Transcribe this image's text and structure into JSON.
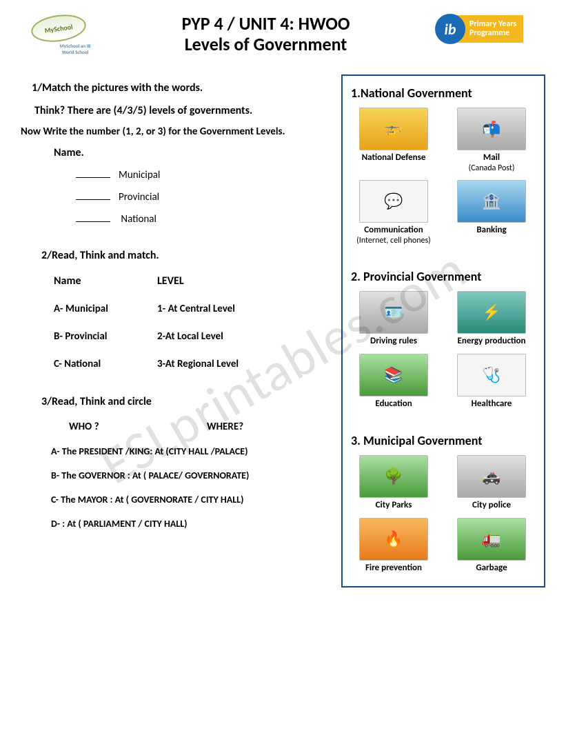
{
  "header": {
    "title_line1": "PYP 4 / UNIT 4: HWOO",
    "title_line2": "Levels of Government",
    "logo_left_text": "MySchool",
    "logo_left_sub": "MySchool an IB World School",
    "ib_text": "ib",
    "ib_banner_line1": "Primary Years",
    "ib_banner_line2": "Programme"
  },
  "watermark": "ESLprintables.com",
  "q1": {
    "heading": "1/Match the pictures with the words.",
    "think": "Think?     There are (4/3/5) levels of governments.",
    "instr": "Now Write the number (1, 2, or 3) for the Government Levels.",
    "name_label": "Name.",
    "items": [
      "Municipal",
      "Provincial",
      "National"
    ]
  },
  "q2": {
    "heading": "2/Read, Think and match.",
    "col1": "Name",
    "col2": "LEVEL",
    "rows": [
      {
        "a": "A-   Municipal",
        "b": "1- At    Central Level"
      },
      {
        "a": "B-   Provincial",
        "b": "2-At    Local Level"
      },
      {
        "a": "C-   National",
        "b": "3-At    Regional Level"
      }
    ]
  },
  "q3": {
    "heading": "3/Read, Think and circle",
    "col1": "WHO ?",
    "col2": "WHERE?",
    "rows": [
      "A-   The PRESIDENT /KING:    At (CITY HALL   /PALACE)",
      "B-   The GOVERNOR    :   At    ( PALACE/ GOVERNORATE)",
      "C-   The  MAYOR        :   At  ( GOVERNORATE / CITY HALL)",
      "D-                               :   At    ( PARLIAMENT / CITY HALL)"
    ]
  },
  "side": {
    "sections": [
      {
        "title": "1.National Government",
        "items": [
          {
            "label": "National Defense",
            "sub": "",
            "icon": "🚁",
            "cls": "yellow"
          },
          {
            "label": "Mail",
            "sub": "(Canada Post)",
            "icon": "📬",
            "cls": "grey"
          },
          {
            "label": "Communication",
            "sub": "(Internet, cell phones)",
            "icon": "💬",
            "cls": ""
          },
          {
            "label": "Banking",
            "sub": "",
            "icon": "🏦",
            "cls": "blue"
          }
        ]
      },
      {
        "title": "2.  Provincial Government",
        "items": [
          {
            "label": "Driving rules",
            "sub": "",
            "icon": "🪪",
            "cls": "grey"
          },
          {
            "label": "Energy production",
            "sub": "",
            "icon": "⚡",
            "cls": "teal"
          },
          {
            "label": "Education",
            "sub": "",
            "icon": "📚",
            "cls": "green"
          },
          {
            "label": "Healthcare",
            "sub": "",
            "icon": "🩺",
            "cls": ""
          }
        ]
      },
      {
        "title": "3.  Municipal Government",
        "items": [
          {
            "label": "City Parks",
            "sub": "",
            "icon": "🌳",
            "cls": "green"
          },
          {
            "label": "City police",
            "sub": "",
            "icon": "🚓",
            "cls": "grey"
          },
          {
            "label": "Fire prevention",
            "sub": "",
            "icon": "🔥",
            "cls": "orange"
          },
          {
            "label": "Garbage",
            "sub": "",
            "icon": "🚛",
            "cls": "green"
          }
        ]
      }
    ]
  }
}
